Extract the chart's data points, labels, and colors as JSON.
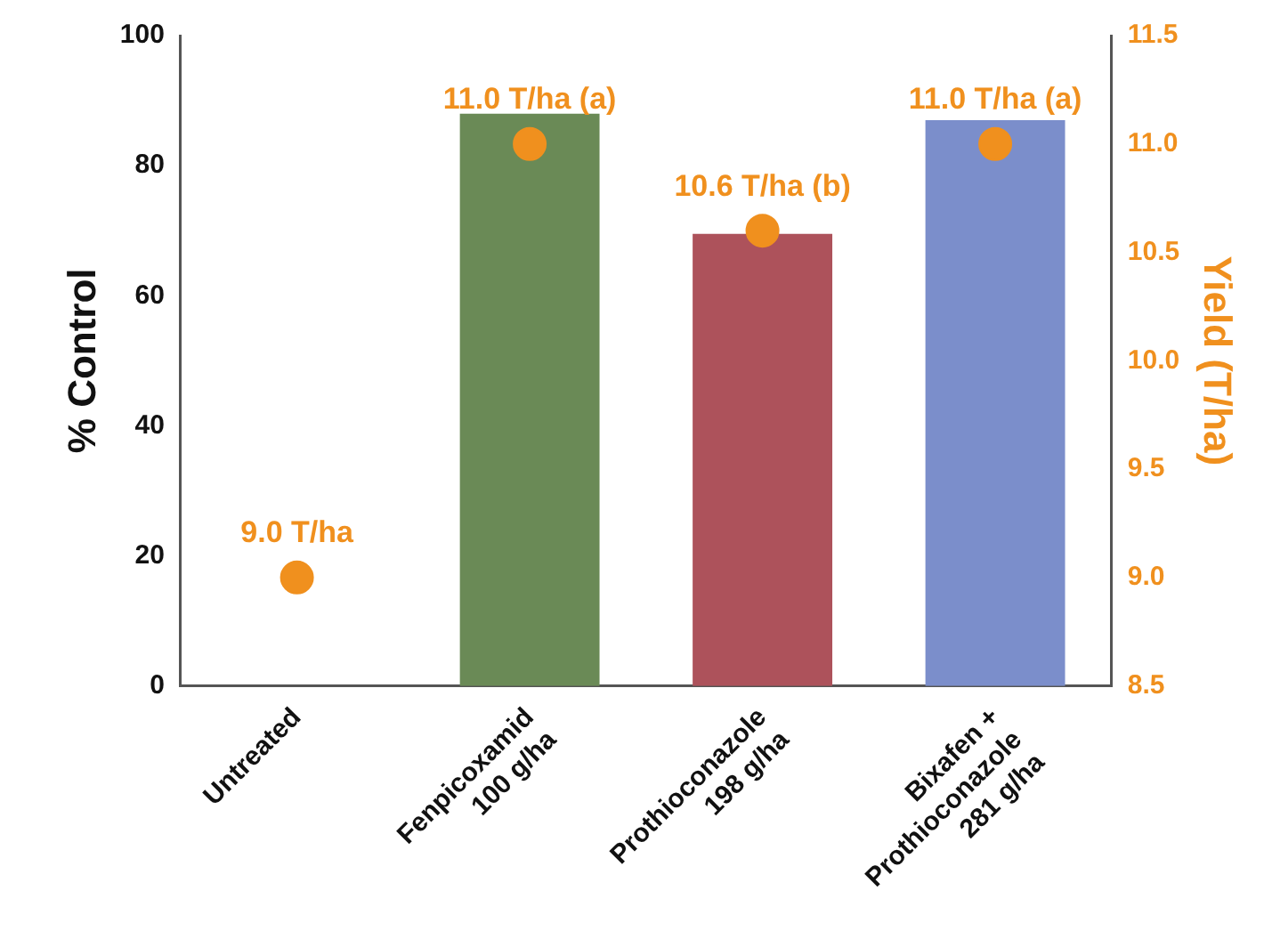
{
  "chart_data": {
    "type": "bar",
    "ylabel": "% Control",
    "y2label": "Yield (T/ha)",
    "categories": [
      "Untreated",
      "Fenpicoxamid\n100 g/ha",
      "Prothioconazole\n198 g/ha",
      "Bixafen +\nProthioconazole\n281 g/ha"
    ],
    "series": [
      {
        "colors": [
          "#6a8a56",
          "#6a8a56",
          "#ad525b",
          "#7b8ecb"
        ],
        "values": [
          0,
          88,
          69.5,
          87
        ]
      },
      {
        "type": "scatter",
        "axis": "y2",
        "color": "#f0901e",
        "values": [
          9.0,
          11.0,
          10.6,
          11.0
        ],
        "value_labels": [
          "9.0 T/ha",
          "11.0 T/ha (a)",
          "10.6 T/ha (b)",
          "11.0 T/ha (a)"
        ]
      }
    ],
    "ylim": [
      0,
      100
    ],
    "yticks": [
      0,
      20,
      40,
      60,
      80,
      100
    ],
    "y2lim": [
      8.5,
      11.5
    ],
    "y2ticks": [
      {
        "value": 8.5,
        "label": "8.5"
      },
      {
        "value": 9,
        "label": "9.0"
      },
      {
        "value": 9.5,
        "label": "9.5"
      },
      {
        "value": 10,
        "label": "10.0"
      },
      {
        "value": 10.5,
        "label": "10.5"
      },
      {
        "value": 11,
        "label": "11.0"
      },
      {
        "value": 11.5,
        "label": "11.5"
      }
    ],
    "marker": "circle",
    "grid": false,
    "legend": false
  }
}
